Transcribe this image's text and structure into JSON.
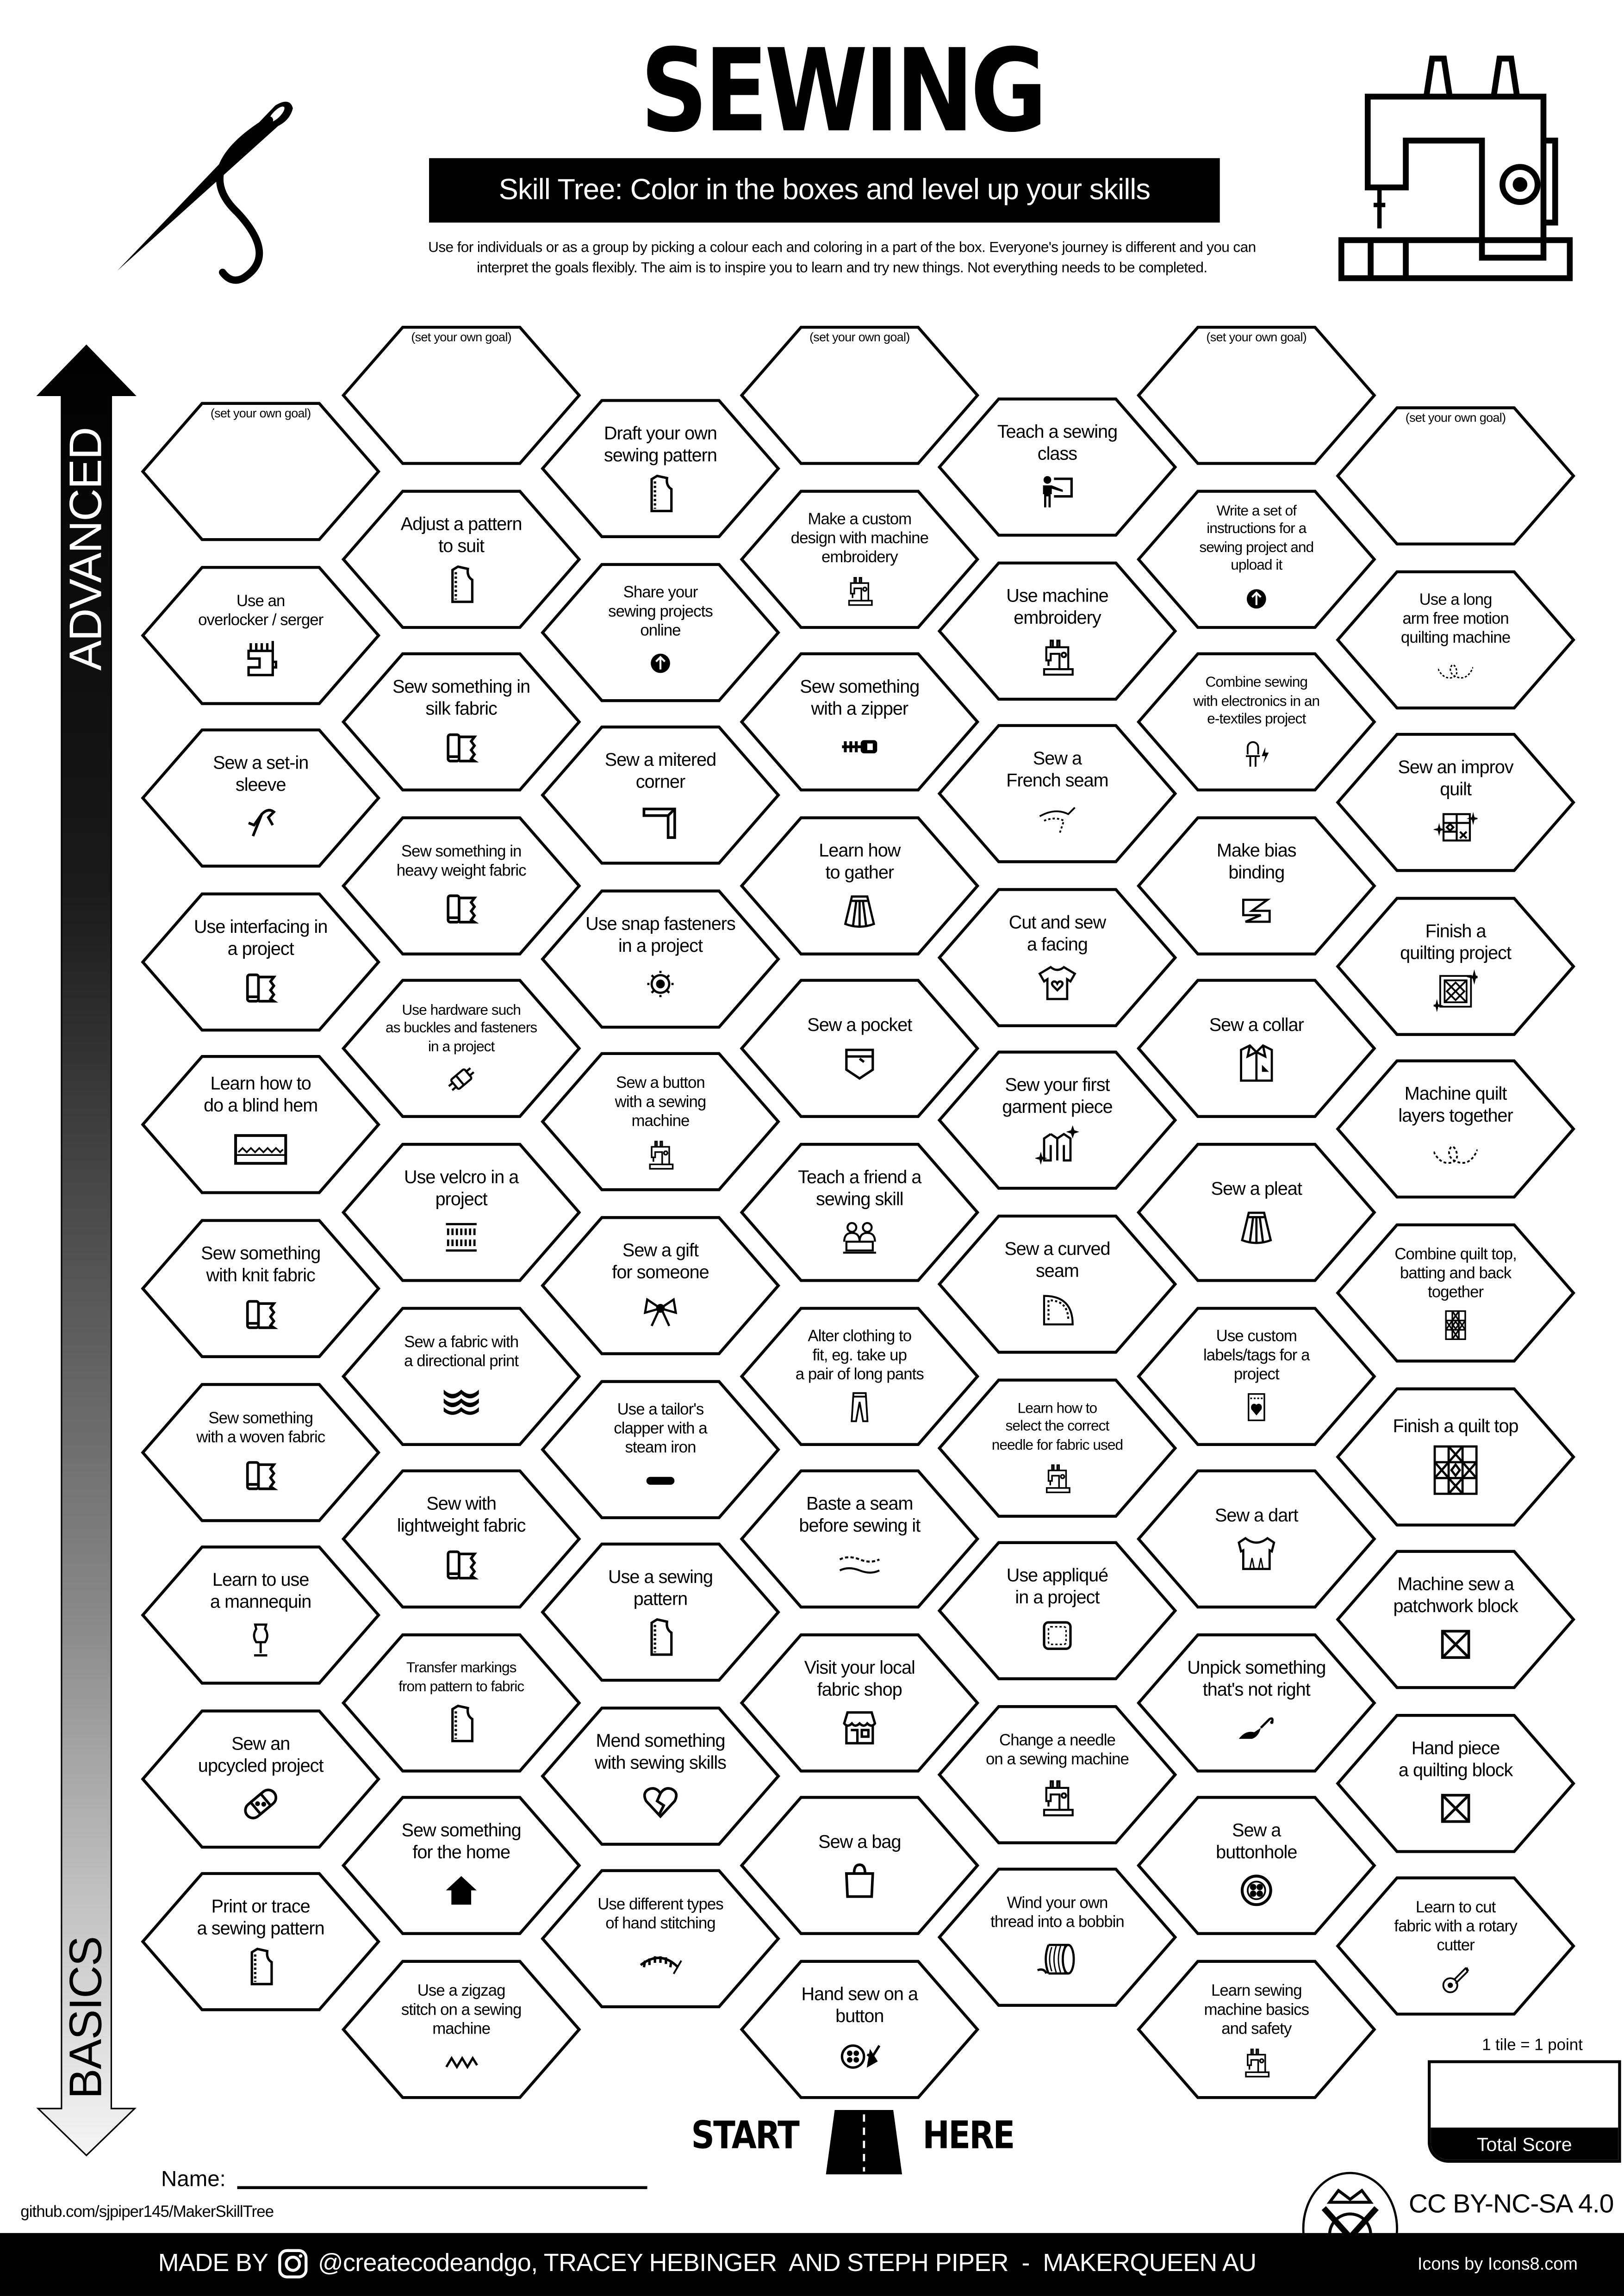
{
  "header": {
    "title": "SEWING",
    "subtitle": "Skill Tree:  Color in the boxes and level up your skills",
    "description": "Use for individuals or as a group by picking a colour each and coloring in a part of the box.  Everyone's journey is different and you can\ninterpret the goals flexibly.  The aim is to inspire you to learn and try new things. Not everything needs to be completed."
  },
  "axis": {
    "top_label": "ADVANCED",
    "bottom_label": "BASICS"
  },
  "goal_text": "(set your own goal)",
  "columns": [
    [
      {
        "goal": true
      },
      {
        "label": "Use an\noverlocker / serger",
        "icon": "overlocker-icon"
      },
      {
        "label": "Sew a set-in\nsleeve",
        "icon": "sleeve-icon"
      },
      {
        "label": "Use interfacing in\na project",
        "icon": "fabric-roll-icon"
      },
      {
        "label": "Learn how to\ndo a blind hem",
        "icon": "blind-hem-icon"
      },
      {
        "label": "Sew something\nwith knit fabric",
        "icon": "fabric-roll-icon"
      },
      {
        "label": "Sew something\nwith a woven fabric",
        "icon": "fabric-roll-icon"
      },
      {
        "label": "Learn to use\na mannequin",
        "icon": "mannequin-icon"
      },
      {
        "label": "Sew an\nupcycled project",
        "icon": "bandage-icon"
      },
      {
        "label": "Print or trace\na sewing pattern",
        "icon": "pattern-piece-icon"
      }
    ],
    [
      {
        "goal": true
      },
      {
        "label": "Adjust a pattern\nto suit",
        "icon": "pattern-piece-icon"
      },
      {
        "label": "Sew something in\nsilk fabric",
        "icon": "fabric-roll-icon"
      },
      {
        "label": "Sew something in\nheavy weight fabric",
        "icon": "fabric-roll-icon"
      },
      {
        "label": "Use hardware such\nas buckles and fasteners\nin a project",
        "icon": "buckle-icon"
      },
      {
        "label": "Use velcro in a\nproject",
        "icon": "velcro-icon"
      },
      {
        "label": "Sew a fabric with\na directional print",
        "icon": "directional-print-icon"
      },
      {
        "label": "Sew with\nlightweight fabric",
        "icon": "fabric-roll-icon"
      },
      {
        "label": "Transfer markings\nfrom pattern to fabric",
        "icon": "pattern-piece-icon"
      },
      {
        "label": "Sew something\nfor the home",
        "icon": "house-icon"
      },
      {
        "label": "Use a zigzag\nstitch on a sewing\nmachine",
        "icon": "zigzag-icon"
      }
    ],
    [
      {
        "label": "Draft your own\nsewing pattern",
        "icon": "pattern-piece-icon"
      },
      {
        "label": "Share your\nsewing projects\nonline",
        "icon": "upload-icon"
      },
      {
        "label": "Sew a mitered\ncorner",
        "icon": "mitered-corner-icon"
      },
      {
        "label": "Use snap fasteners\nin a project",
        "icon": "snap-fastener-icon"
      },
      {
        "label": "Sew a button\nwith a sewing\nmachine",
        "icon": "sewing-machine-icon"
      },
      {
        "label": "Sew a gift\nfor someone",
        "icon": "gift-bow-icon"
      },
      {
        "label": "Use a tailor's\nclapper with a\nsteam iron",
        "icon": "tailors-clapper-icon"
      },
      {
        "label": "Use a sewing\npattern",
        "icon": "pattern-piece-icon"
      },
      {
        "label": "Mend something\nwith sewing skills",
        "icon": "broken-heart-icon"
      },
      {
        "label": "Use different types\nof hand stitching",
        "icon": "hand-stitch-icon"
      }
    ],
    [
      {
        "goal": true
      },
      {
        "label": "Make a custom\ndesign with machine\nembroidery",
        "icon": "sewing-machine-icon"
      },
      {
        "label": "Sew something\nwith a zipper",
        "icon": "zipper-icon"
      },
      {
        "label": "Learn how\nto gather",
        "icon": "skirt-icon"
      },
      {
        "label": "Sew a pocket",
        "icon": "pocket-icon"
      },
      {
        "label": "Teach a friend a\nsewing skill",
        "icon": "teach-friend-icon"
      },
      {
        "label": "Alter clothing to\nfit, eg. take up\na pair of long pants",
        "icon": "pants-icon"
      },
      {
        "label": "Baste a seam\nbefore sewing it",
        "icon": "basting-seam-icon"
      },
      {
        "label": "Visit your local\nfabric shop",
        "icon": "shop-icon"
      },
      {
        "label": "Sew a bag",
        "icon": "bag-icon"
      },
      {
        "label": "Hand sew on a\nbutton",
        "icon": "button-needle-icon"
      }
    ],
    [
      {
        "label": "Teach a sewing\nclass",
        "icon": "teacher-icon"
      },
      {
        "label": "Use machine\nembroidery",
        "icon": "sewing-machine-icon"
      },
      {
        "label": "Sew a\nFrench seam",
        "icon": "french-seam-icon"
      },
      {
        "label": "Cut and sew\na facing",
        "icon": "tshirt-heart-icon"
      },
      {
        "label": "Sew your first\ngarment piece",
        "icon": "jacket-sparkle-icon"
      },
      {
        "label": "Sew a curved\nseam",
        "icon": "curved-seam-icon"
      },
      {
        "label": "Learn how to\nselect the correct\nneedle for fabric used",
        "icon": "sewing-machine-icon"
      },
      {
        "label": "Use appliqué\nin a project",
        "icon": "applique-icon"
      },
      {
        "label": "Change a needle\non a sewing machine",
        "icon": "sewing-machine-icon"
      },
      {
        "label": "Wind your own\nthread into a bobbin",
        "icon": "bobbin-icon"
      }
    ],
    [
      {
        "goal": true
      },
      {
        "label": "Write a set of\ninstructions for a\nsewing project and\nupload it",
        "icon": "upload-icon"
      },
      {
        "label": "Combine sewing\nwith electronics in an\ne-textiles project",
        "icon": "led-icon"
      },
      {
        "label": "Make bias\nbinding",
        "icon": "bias-binding-icon"
      },
      {
        "label": "Sew a collar",
        "icon": "collar-shirt-icon"
      },
      {
        "label": "Sew a pleat",
        "icon": "skirt-icon"
      },
      {
        "label": "Use custom\nlabels/tags for a\nproject",
        "icon": "label-heart-icon"
      },
      {
        "label": "Sew a dart",
        "icon": "dart-top-icon"
      },
      {
        "label": "Unpick something\nthat's not right",
        "icon": "seam-ripper-icon"
      },
      {
        "label": "Sew a\nbuttonhole",
        "icon": "button-icon"
      },
      {
        "label": "Learn sewing\nmachine basics\nand safety",
        "icon": "sewing-machine-icon"
      }
    ],
    [
      {
        "goal": true
      },
      {
        "label": "Use a long\narm free motion\nquilting machine",
        "icon": "quilting-line-icon"
      },
      {
        "label": "Sew an improv\nquilt",
        "icon": "improv-quilt-icon"
      },
      {
        "label": "Finish a\nquilting project",
        "icon": "quilt-sparkle-icon"
      },
      {
        "label": "Machine quilt\nlayers together",
        "icon": "quilting-line-icon"
      },
      {
        "label": "Combine quilt top,\nbatting and back\ntogether",
        "icon": "quilt-block-icon"
      },
      {
        "label": "Finish a quilt top",
        "icon": "quilt-block-large-icon"
      },
      {
        "label": "Machine sew a\npatchwork block",
        "icon": "patchwork-block-icon"
      },
      {
        "label": "Hand piece\na quilting block",
        "icon": "patchwork-block-icon"
      },
      {
        "label": "Learn to cut\nfabric with a rotary\ncutter",
        "icon": "rotary-cutter-icon"
      }
    ]
  ],
  "start": {
    "left": "START",
    "right": "HERE"
  },
  "name_label": "Name:",
  "github": "github.com/sjpiper145/MakerSkillTree",
  "score": {
    "note": "1 tile = 1 point",
    "label": "Total Score"
  },
  "license": "CC BY-NC-SA 4.0",
  "footer": {
    "made_by": "MADE BY",
    "credits": "@createcodeandgo, TRACEY HEBINGER  AND STEPH PIPER  -  MAKERQUEEN AU",
    "icons_credit": "Icons by Icons8.com"
  }
}
